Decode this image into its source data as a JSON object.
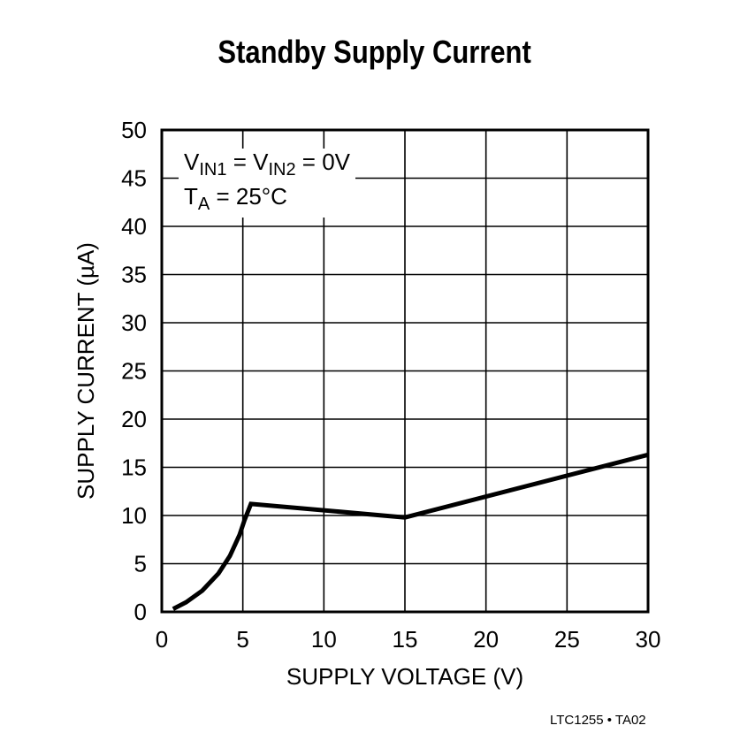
{
  "chart_data": {
    "type": "line",
    "title": "Standby Supply Current",
    "xlabel": "SUPPLY VOLTAGE (V)",
    "ylabel": "SUPPLY CURRENT (µA)",
    "xlim": [
      0,
      30
    ],
    "ylim": [
      0,
      50
    ],
    "xticks": [
      0,
      5,
      10,
      15,
      20,
      25,
      30
    ],
    "yticks": [
      0,
      5,
      10,
      15,
      20,
      25,
      30,
      35,
      40,
      45,
      50
    ],
    "grid": true,
    "legend": null,
    "annotations": [
      "VIN1 = VIN2 = 0V",
      "TA = 25°C"
    ],
    "series": [
      {
        "name": "Standby Supply Current",
        "x": [
          0.7,
          1.5,
          2.5,
          3.5,
          4.2,
          4.8,
          5.1,
          5.5,
          15,
          30
        ],
        "y": [
          0.3,
          1.0,
          2.2,
          4.0,
          5.8,
          8.0,
          9.5,
          11.2,
          9.8,
          16.3
        ]
      }
    ]
  },
  "title": "Standby Supply Current",
  "annotation": {
    "line1": {
      "v1": "V",
      "s1": "IN1",
      "mid": " = V",
      "s2": "IN2",
      "end": " = 0V"
    },
    "line2": {
      "t": "T",
      "s": "A",
      "end": " = 25°C"
    }
  },
  "footer": "LTC1255 • TA02"
}
